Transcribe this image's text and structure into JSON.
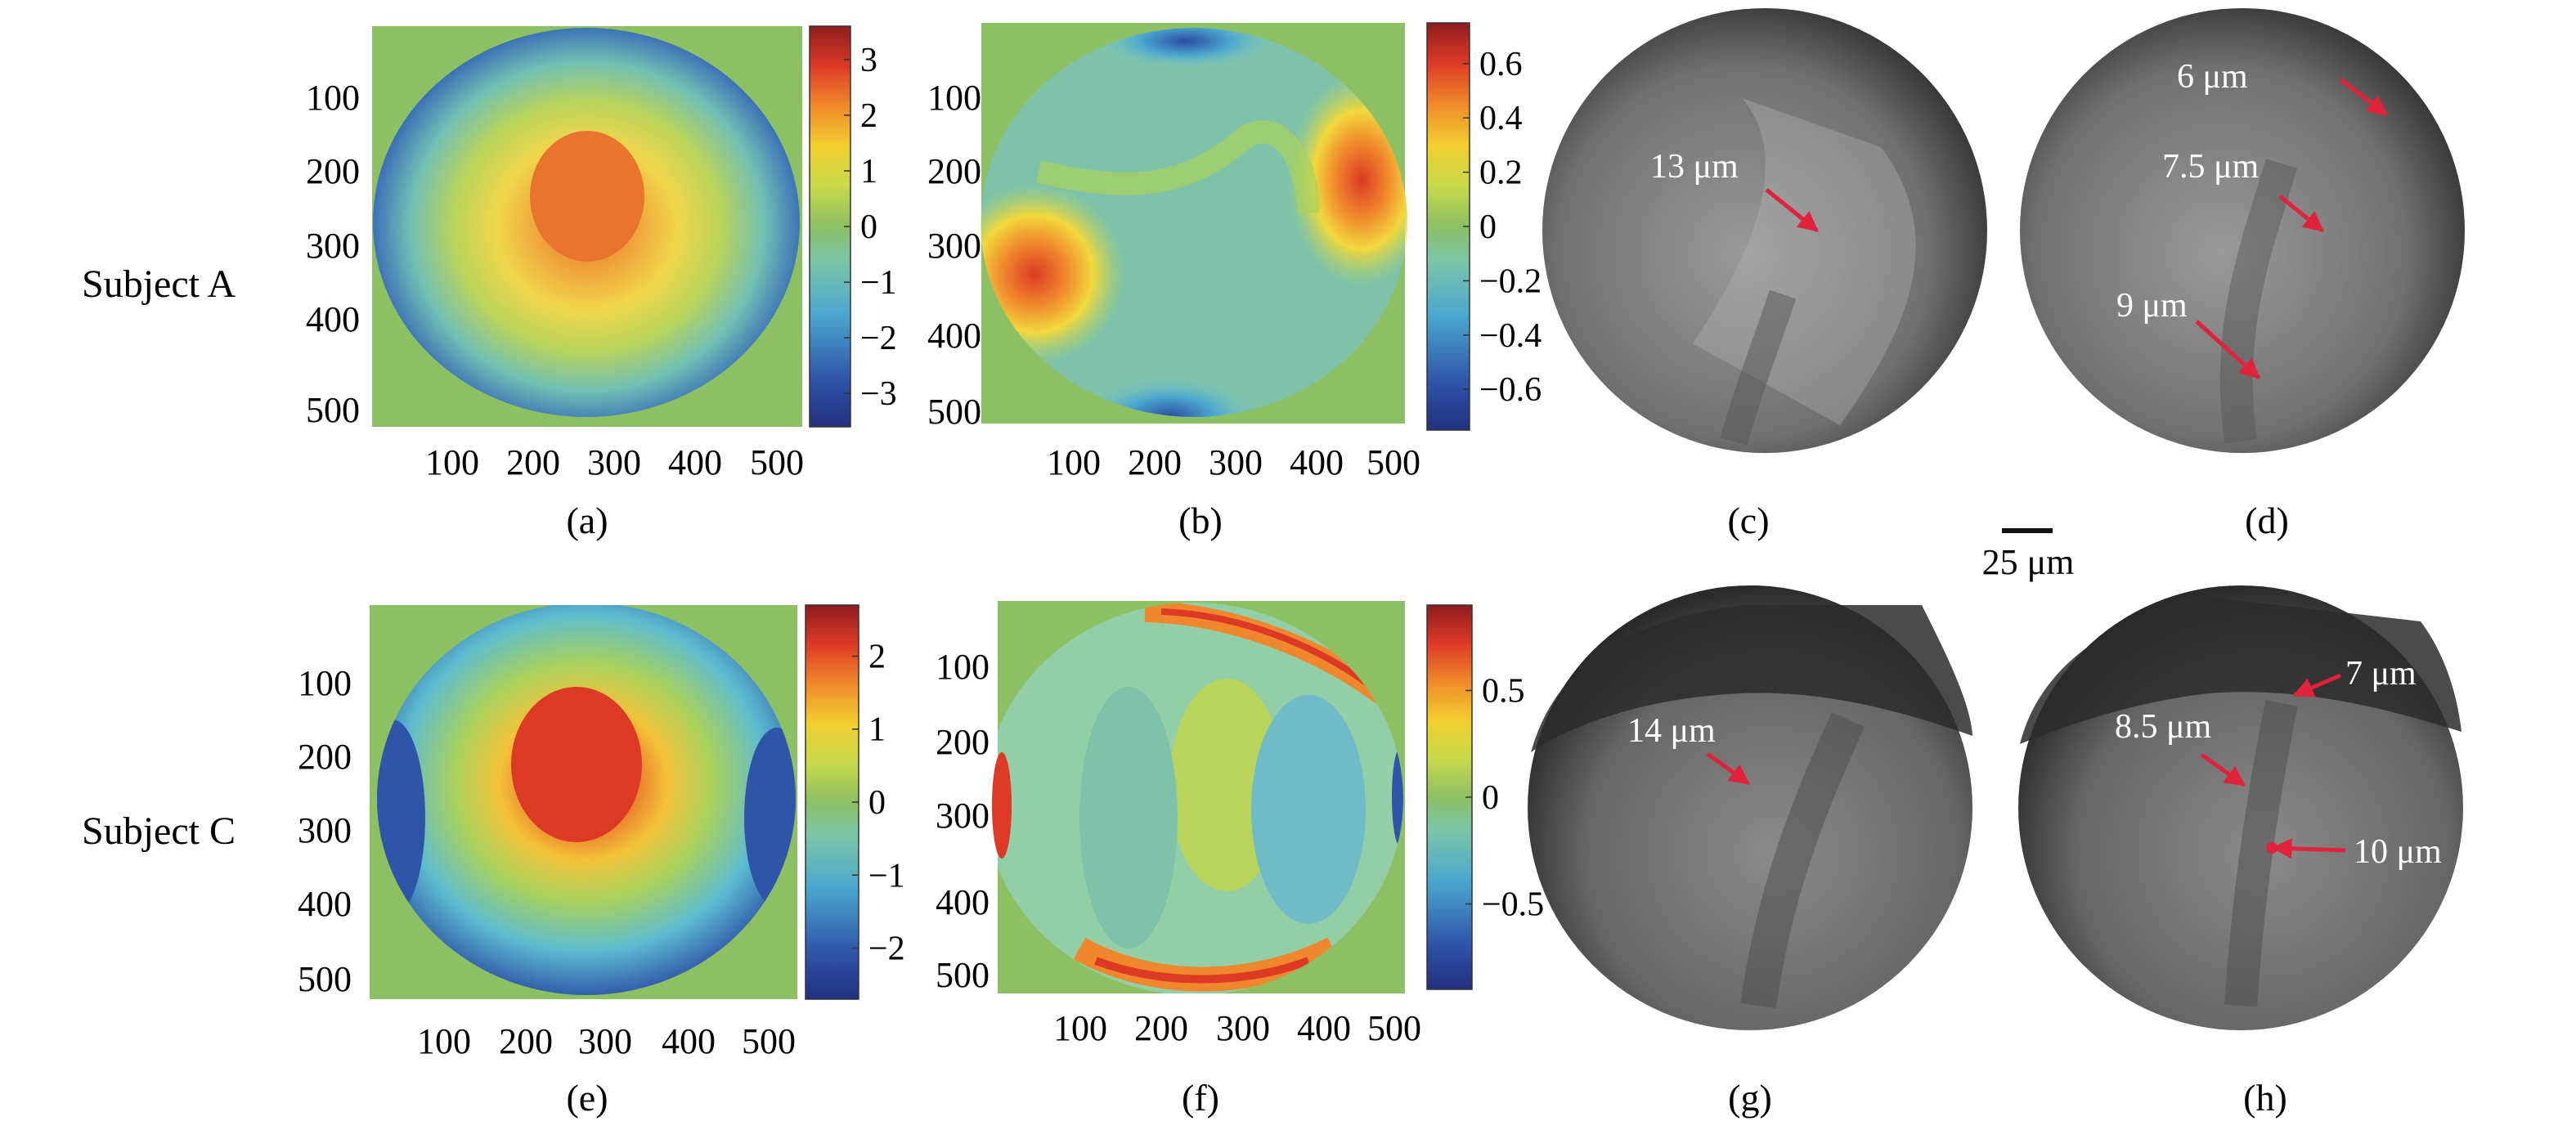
{
  "figure": {
    "rows": [
      {
        "label": "Subject A"
      },
      {
        "label": "Subject C"
      }
    ],
    "axis_ticks": [
      "100",
      "200",
      "300",
      "400",
      "500"
    ],
    "panels": {
      "a": {
        "caption": "(a)",
        "colorbar_ticks": [
          "3",
          "2",
          "1",
          "0",
          "−1",
          "−2",
          "−3"
        ],
        "colorbar_range": [
          -3.6,
          3.6
        ]
      },
      "b": {
        "caption": "(b)",
        "colorbar_ticks": [
          "0.6",
          "0.4",
          "0.2",
          "0",
          "−0.2",
          "−0.4",
          "−0.6"
        ],
        "colorbar_range": [
          -0.75,
          0.75
        ]
      },
      "c": {
        "caption": "(c)",
        "annotations": [
          "13 μm"
        ]
      },
      "d": {
        "caption": "(d)",
        "annotations": [
          "6 μm",
          "7.5 μm",
          "9 μm"
        ]
      },
      "e": {
        "caption": "(e)",
        "colorbar_ticks": [
          "2",
          "1",
          "0",
          "−1",
          "−2"
        ],
        "colorbar_range": [
          -2.7,
          2.7
        ]
      },
      "f": {
        "caption": "(f)",
        "colorbar_ticks": [
          "0.5",
          "0",
          "−0.5"
        ],
        "colorbar_range": [
          -0.9,
          0.9
        ]
      },
      "g": {
        "caption": "(g)",
        "annotations": [
          "14 μm"
        ]
      },
      "h": {
        "caption": "(h)",
        "annotations": [
          "7 μm",
          "8.5 μm",
          "10 μm"
        ]
      }
    },
    "scale_bar": {
      "label": "25 μm"
    },
    "colors": {
      "arrow": "#e0223a",
      "map_background": "#8cc063"
    }
  }
}
